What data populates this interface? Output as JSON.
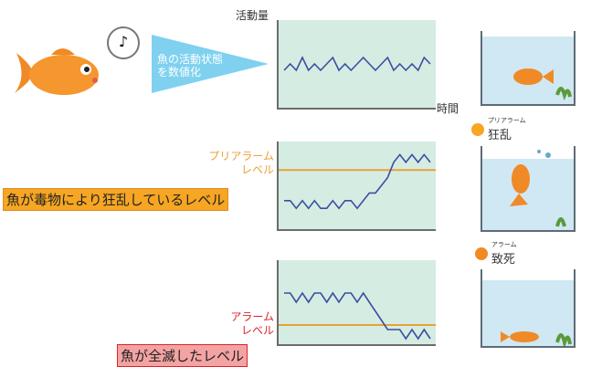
{
  "fish_note": "♪",
  "speech": {
    "line1": "魚の活動状態",
    "line2": "を数値化"
  },
  "axis": {
    "y_label": "活動量",
    "x_label": "時間"
  },
  "pre_alarm": {
    "line1": "プリアラーム",
    "line2": "レベル"
  },
  "alarm": {
    "line1": "アラーム",
    "line2": "レベル"
  },
  "labels": {
    "frenzy_level": "魚が毒物により狂乱しているレベル",
    "dead_level": "魚が全滅したレベル"
  },
  "stages": {
    "frenzy_ruby": "プリアラーム",
    "frenzy": "狂乱",
    "death_ruby": "アラーム",
    "death": "致死"
  },
  "colors": {
    "chart_bg": "#d5ece3",
    "line": "#3a4f9f",
    "threshold": "#e8a135",
    "pre_alarm_text": "#e8a135",
    "alarm_text": "#d7262c",
    "frenzy_box_bg": "#f6a623",
    "dead_box_bg": "#f4a3a3"
  },
  "chart_data": [
    {
      "type": "line",
      "ylabel": "活動量",
      "xlabel": "時間",
      "series": [
        {
          "values": [
            5,
            6,
            5,
            7,
            5,
            6,
            5,
            6,
            7,
            5,
            6,
            5,
            6,
            7,
            6,
            5,
            6,
            7,
            5,
            6,
            5,
            6,
            5,
            7,
            6
          ]
        }
      ]
    },
    {
      "type": "line",
      "series": [
        {
          "values": [
            3,
            3,
            2,
            3,
            2,
            3,
            2,
            2,
            3,
            2,
            3,
            3,
            2,
            3,
            4,
            4,
            5,
            6,
            8,
            9,
            8,
            9,
            8,
            9,
            8
          ]
        }
      ],
      "threshold": 7
    },
    {
      "type": "line",
      "series": [
        {
          "values": [
            5,
            5,
            4,
            5,
            4,
            5,
            5,
            4,
            5,
            4,
            5,
            5,
            4,
            5,
            4,
            3,
            2,
            1,
            1,
            1,
            0,
            1,
            0,
            1,
            0
          ]
        }
      ],
      "threshold": 1.5
    }
  ]
}
